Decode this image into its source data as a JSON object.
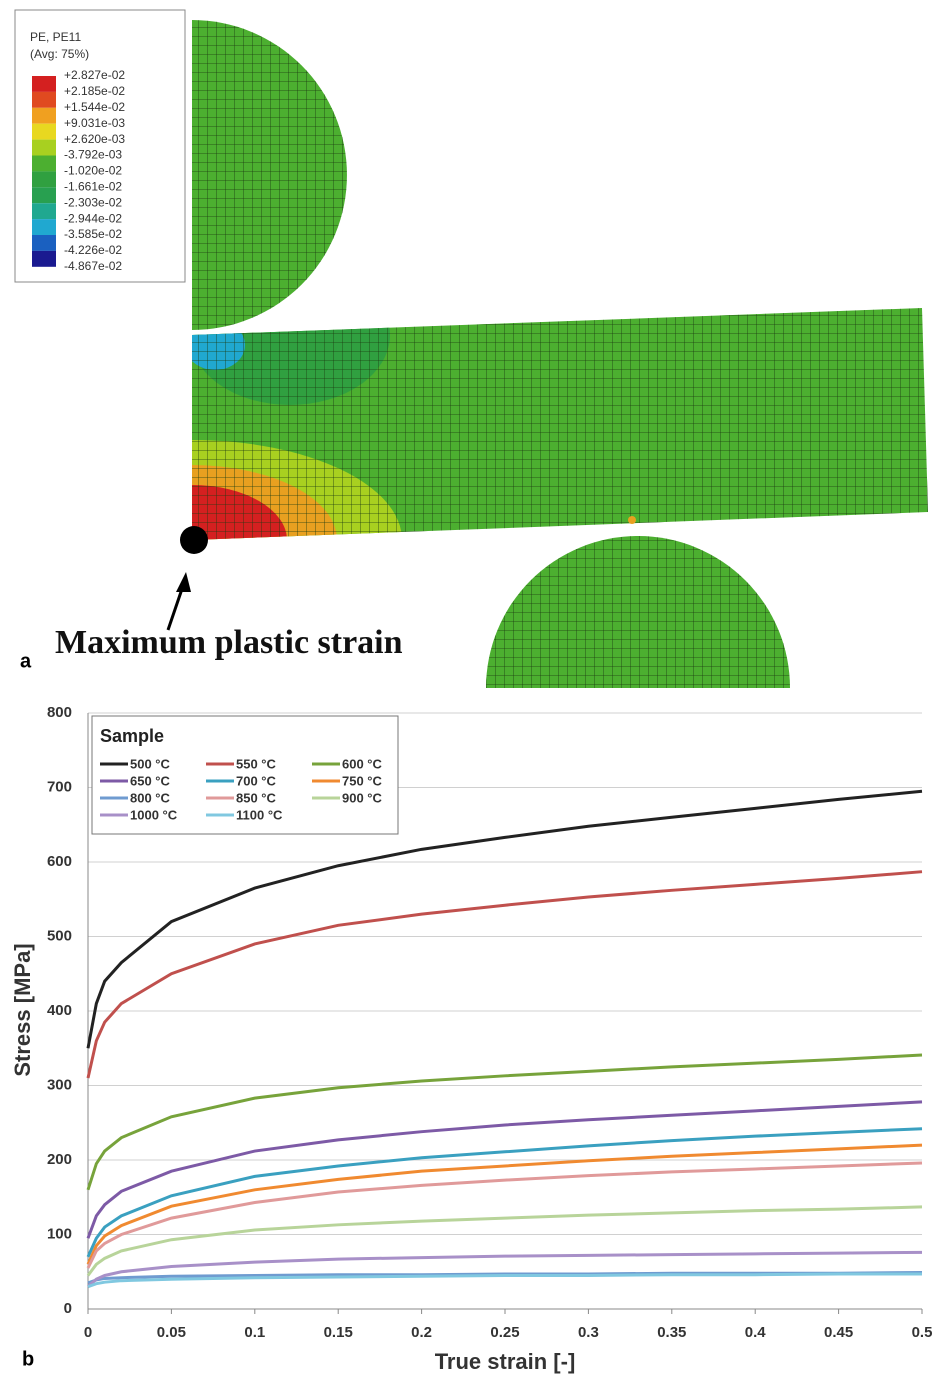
{
  "panel_a": {
    "label": "a",
    "legend": {
      "title": "PE, PE11",
      "subtitle": "(Avg: 75%)",
      "levels": [
        "+2.827e-02",
        "+2.185e-02",
        "+1.544e-02",
        "+9.031e-03",
        "+2.620e-03",
        "-3.792e-03",
        "-1.020e-02",
        "-1.661e-02",
        "-2.303e-02",
        "-2.944e-02",
        "-3.585e-02",
        "-4.226e-02",
        "-4.867e-02"
      ],
      "colors": [
        "#d42020",
        "#e04a20",
        "#f0a020",
        "#e8d820",
        "#a8d020",
        "#4caf30",
        "#30a040",
        "#28a050",
        "#20a890",
        "#20a8d0",
        "#1a60c0",
        "#1a1a90"
      ]
    },
    "annotation": "Maximum plastic strain"
  },
  "chart_data": {
    "type": "line",
    "panel_label": "b",
    "x_label": "True strain [-]",
    "y_label": "Stress [MPa]",
    "legend_title": "Sample",
    "x": [
      0,
      0.005,
      0.01,
      0.02,
      0.05,
      0.1,
      0.15,
      0.2,
      0.25,
      0.3,
      0.35,
      0.4,
      0.45,
      0.5
    ],
    "xlim": [
      0,
      0.5
    ],
    "xticks": [
      0,
      0.05,
      0.1,
      0.15,
      0.2,
      0.25,
      0.3,
      0.35,
      0.4,
      0.45,
      0.5
    ],
    "ylim": [
      0,
      800
    ],
    "yticks": [
      0,
      100,
      200,
      300,
      400,
      500,
      600,
      700,
      800
    ],
    "grid": true,
    "legend": "upper left",
    "series": [
      {
        "name": "500 °C",
        "color": "#222222",
        "values": [
          350,
          410,
          440,
          465,
          520,
          565,
          595,
          617,
          633,
          648,
          660,
          672,
          684,
          695
        ]
      },
      {
        "name": "550 °C",
        "color": "#c0504d",
        "values": [
          310,
          360,
          385,
          410,
          450,
          490,
          515,
          530,
          542,
          553,
          562,
          570,
          578,
          587
        ]
      },
      {
        "name": "600 °C",
        "color": "#77a33b",
        "values": [
          160,
          195,
          212,
          230,
          258,
          283,
          297,
          306,
          313,
          319,
          325,
          330,
          335,
          341
        ]
      },
      {
        "name": "650 °C",
        "color": "#7d5aa6",
        "values": [
          95,
          125,
          140,
          158,
          185,
          212,
          227,
          238,
          247,
          254,
          260,
          266,
          272,
          278
        ]
      },
      {
        "name": "700 °C",
        "color": "#3aa0c0",
        "values": [
          70,
          95,
          110,
          125,
          152,
          178,
          192,
          203,
          211,
          219,
          226,
          232,
          237,
          242
        ]
      },
      {
        "name": "750 °C",
        "color": "#f08a30",
        "values": [
          60,
          85,
          98,
          112,
          138,
          160,
          174,
          185,
          192,
          199,
          205,
          210,
          215,
          220
        ]
      },
      {
        "name": "800 °C",
        "color": "#6f9bd0",
        "values": [
          35,
          39,
          41,
          42,
          44,
          45,
          46,
          46,
          47,
          47,
          48,
          48,
          48,
          49
        ]
      },
      {
        "name": "850 °C",
        "color": "#e09a9a",
        "values": [
          55,
          78,
          88,
          100,
          122,
          143,
          157,
          166,
          173,
          179,
          184,
          188,
          192,
          196
        ]
      },
      {
        "name": "900 °C",
        "color": "#b8d49a",
        "values": [
          45,
          60,
          68,
          78,
          93,
          106,
          113,
          118,
          122,
          126,
          129,
          132,
          134,
          137
        ]
      },
      {
        "name": "1000 °C",
        "color": "#a890c8",
        "values": [
          30,
          40,
          45,
          50,
          57,
          63,
          67,
          69,
          71,
          72,
          73,
          74,
          75,
          76
        ]
      },
      {
        "name": "1100 °C",
        "color": "#80c8e0",
        "values": [
          30,
          34,
          36,
          38,
          40,
          42,
          43,
          44,
          45,
          45,
          46,
          46,
          47,
          47
        ]
      }
    ]
  }
}
